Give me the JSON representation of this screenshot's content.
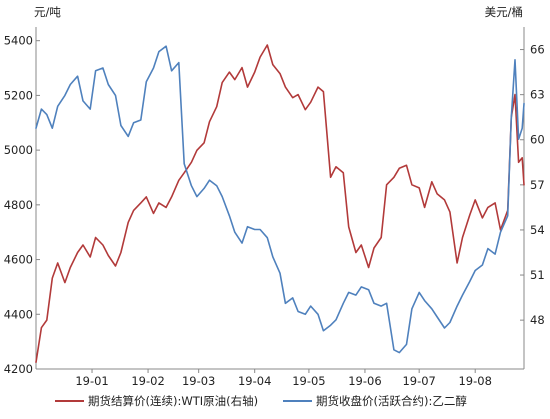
{
  "chart_data": {
    "type": "line",
    "left_unit": "元/吨",
    "right_unit": "美元/桶",
    "y_left": {
      "range": [
        4200,
        5450
      ],
      "ticks": [
        4200,
        4400,
        4600,
        4800,
        5000,
        5200,
        5400
      ]
    },
    "y_right": {
      "range": [
        44.75,
        67.5
      ],
      "ticks": [
        48,
        51,
        54,
        57,
        60,
        63,
        66
      ]
    },
    "x": {
      "range": [
        "2018-12-01",
        "2019-08-28"
      ],
      "ticks": [
        {
          "date": "2019-01-01",
          "label": "19-01"
        },
        {
          "date": "2019-02-01",
          "label": "19-02"
        },
        {
          "date": "2019-03-01",
          "label": "19-03"
        },
        {
          "date": "2019-04-01",
          "label": "19-04"
        },
        {
          "date": "2019-05-01",
          "label": "19-05"
        },
        {
          "date": "2019-06-01",
          "label": "19-06"
        },
        {
          "date": "2019-07-01",
          "label": "19-07"
        },
        {
          "date": "2019-08-01",
          "label": "19-08"
        }
      ]
    },
    "legend_position": "bottom",
    "grid": false,
    "series": [
      {
        "name": "期货结算价(连续):WTI原油(右轴)",
        "axis": "right",
        "color": "#b23a3a",
        "points": [
          [
            "2018-12-01",
            45.2
          ],
          [
            "2018-12-04",
            47.5
          ],
          [
            "2018-12-07",
            48.0
          ],
          [
            "2018-12-10",
            50.8
          ],
          [
            "2018-12-13",
            51.8
          ],
          [
            "2018-12-17",
            50.5
          ],
          [
            "2018-12-20",
            51.5
          ],
          [
            "2018-12-24",
            52.5
          ],
          [
            "2018-12-27",
            53.0
          ],
          [
            "2018-12-31",
            52.2
          ],
          [
            "2019-01-03",
            53.5
          ],
          [
            "2019-01-07",
            53.0
          ],
          [
            "2019-01-10",
            52.3
          ],
          [
            "2019-01-14",
            51.6
          ],
          [
            "2019-01-17",
            52.5
          ],
          [
            "2019-01-21",
            54.5
          ],
          [
            "2019-01-24",
            55.3
          ],
          [
            "2019-01-28",
            55.8
          ],
          [
            "2019-01-31",
            56.2
          ],
          [
            "2019-02-04",
            55.1
          ],
          [
            "2019-02-07",
            55.8
          ],
          [
            "2019-02-11",
            55.5
          ],
          [
            "2019-02-14",
            56.2
          ],
          [
            "2019-02-18",
            57.3
          ],
          [
            "2019-02-21",
            57.8
          ],
          [
            "2019-02-25",
            58.5
          ],
          [
            "2019-02-28",
            59.3
          ],
          [
            "2019-03-04",
            59.8
          ],
          [
            "2019-03-07",
            61.2
          ],
          [
            "2019-03-11",
            62.2
          ],
          [
            "2019-03-14",
            63.8
          ],
          [
            "2019-03-18",
            64.5
          ],
          [
            "2019-03-21",
            64.0
          ],
          [
            "2019-03-25",
            64.8
          ],
          [
            "2019-03-28",
            63.5
          ],
          [
            "2019-04-01",
            64.5
          ],
          [
            "2019-04-04",
            65.5
          ],
          [
            "2019-04-08",
            66.3
          ],
          [
            "2019-04-11",
            65.0
          ],
          [
            "2019-04-15",
            64.4
          ],
          [
            "2019-04-18",
            63.5
          ],
          [
            "2019-04-22",
            62.8
          ],
          [
            "2019-04-25",
            63.0
          ],
          [
            "2019-04-29",
            62.0
          ],
          [
            "2019-05-02",
            62.5
          ],
          [
            "2019-05-06",
            63.5
          ],
          [
            "2019-05-09",
            63.2
          ],
          [
            "2019-05-13",
            57.5
          ],
          [
            "2019-05-16",
            58.2
          ],
          [
            "2019-05-20",
            57.8
          ],
          [
            "2019-05-23",
            54.2
          ],
          [
            "2019-05-27",
            52.5
          ],
          [
            "2019-05-30",
            53.0
          ],
          [
            "2019-06-03",
            51.5
          ],
          [
            "2019-06-06",
            52.8
          ],
          [
            "2019-06-10",
            53.5
          ],
          [
            "2019-06-13",
            57.0
          ],
          [
            "2019-06-17",
            57.5
          ],
          [
            "2019-06-20",
            58.1
          ],
          [
            "2019-06-24",
            58.3
          ],
          [
            "2019-06-27",
            57.0
          ],
          [
            "2019-07-01",
            56.8
          ],
          [
            "2019-07-04",
            55.5
          ],
          [
            "2019-07-08",
            57.2
          ],
          [
            "2019-07-11",
            56.4
          ],
          [
            "2019-07-15",
            56.0
          ],
          [
            "2019-07-18",
            55.2
          ],
          [
            "2019-07-22",
            51.8
          ],
          [
            "2019-07-25",
            53.5
          ],
          [
            "2019-07-29",
            55.0
          ],
          [
            "2019-08-01",
            56.0
          ],
          [
            "2019-08-05",
            54.8
          ],
          [
            "2019-08-08",
            55.5
          ],
          [
            "2019-08-12",
            55.8
          ],
          [
            "2019-08-15",
            54.0
          ],
          [
            "2019-08-19",
            55.3
          ],
          [
            "2019-08-21",
            61.5
          ],
          [
            "2019-08-23",
            63.0
          ],
          [
            "2019-08-25",
            58.5
          ],
          [
            "2019-08-27",
            58.8
          ],
          [
            "2019-08-28",
            57.0
          ]
        ]
      },
      {
        "name": "期货收盘价(活跃合约):乙二醇",
        "axis": "left",
        "color": "#4f81bd",
        "points": [
          [
            "2018-12-01",
            5080
          ],
          [
            "2018-12-04",
            5150
          ],
          [
            "2018-12-07",
            5130
          ],
          [
            "2018-12-10",
            5080
          ],
          [
            "2018-12-13",
            5160
          ],
          [
            "2018-12-17",
            5200
          ],
          [
            "2018-12-20",
            5240
          ],
          [
            "2018-12-24",
            5270
          ],
          [
            "2018-12-27",
            5180
          ],
          [
            "2018-12-31",
            5150
          ],
          [
            "2019-01-03",
            5290
          ],
          [
            "2019-01-07",
            5300
          ],
          [
            "2019-01-10",
            5240
          ],
          [
            "2019-01-14",
            5200
          ],
          [
            "2019-01-17",
            5090
          ],
          [
            "2019-01-21",
            5050
          ],
          [
            "2019-01-24",
            5100
          ],
          [
            "2019-01-28",
            5110
          ],
          [
            "2019-01-31",
            5250
          ],
          [
            "2019-02-04",
            5300
          ],
          [
            "2019-02-07",
            5360
          ],
          [
            "2019-02-11",
            5380
          ],
          [
            "2019-02-14",
            5290
          ],
          [
            "2019-02-18",
            5320
          ],
          [
            "2019-02-21",
            4950
          ],
          [
            "2019-02-25",
            4870
          ],
          [
            "2019-02-28",
            4830
          ],
          [
            "2019-03-04",
            4860
          ],
          [
            "2019-03-07",
            4890
          ],
          [
            "2019-03-11",
            4870
          ],
          [
            "2019-03-14",
            4830
          ],
          [
            "2019-03-18",
            4760
          ],
          [
            "2019-03-21",
            4700
          ],
          [
            "2019-03-25",
            4660
          ],
          [
            "2019-03-28",
            4720
          ],
          [
            "2019-04-01",
            4710
          ],
          [
            "2019-04-04",
            4710
          ],
          [
            "2019-04-08",
            4680
          ],
          [
            "2019-04-11",
            4610
          ],
          [
            "2019-04-15",
            4550
          ],
          [
            "2019-04-18",
            4440
          ],
          [
            "2019-04-22",
            4460
          ],
          [
            "2019-04-25",
            4410
          ],
          [
            "2019-04-29",
            4400
          ],
          [
            "2019-05-02",
            4430
          ],
          [
            "2019-05-06",
            4400
          ],
          [
            "2019-05-09",
            4340
          ],
          [
            "2019-05-13",
            4360
          ],
          [
            "2019-05-16",
            4380
          ],
          [
            "2019-05-20",
            4440
          ],
          [
            "2019-05-23",
            4480
          ],
          [
            "2019-05-27",
            4470
          ],
          [
            "2019-05-30",
            4500
          ],
          [
            "2019-06-03",
            4490
          ],
          [
            "2019-06-06",
            4440
          ],
          [
            "2019-06-10",
            4430
          ],
          [
            "2019-06-13",
            4440
          ],
          [
            "2019-06-17",
            4270
          ],
          [
            "2019-06-20",
            4260
          ],
          [
            "2019-06-24",
            4290
          ],
          [
            "2019-06-27",
            4420
          ],
          [
            "2019-07-01",
            4480
          ],
          [
            "2019-07-04",
            4450
          ],
          [
            "2019-07-08",
            4420
          ],
          [
            "2019-07-11",
            4390
          ],
          [
            "2019-07-15",
            4350
          ],
          [
            "2019-07-18",
            4370
          ],
          [
            "2019-07-22",
            4430
          ],
          [
            "2019-07-25",
            4470
          ],
          [
            "2019-07-29",
            4520
          ],
          [
            "2019-08-01",
            4560
          ],
          [
            "2019-08-05",
            4580
          ],
          [
            "2019-08-08",
            4640
          ],
          [
            "2019-08-12",
            4620
          ],
          [
            "2019-08-15",
            4700
          ],
          [
            "2019-08-19",
            4760
          ],
          [
            "2019-08-21",
            5120
          ],
          [
            "2019-08-23",
            5330
          ],
          [
            "2019-08-25",
            5040
          ],
          [
            "2019-08-27",
            5080
          ],
          [
            "2019-08-28",
            5170
          ]
        ]
      }
    ]
  }
}
